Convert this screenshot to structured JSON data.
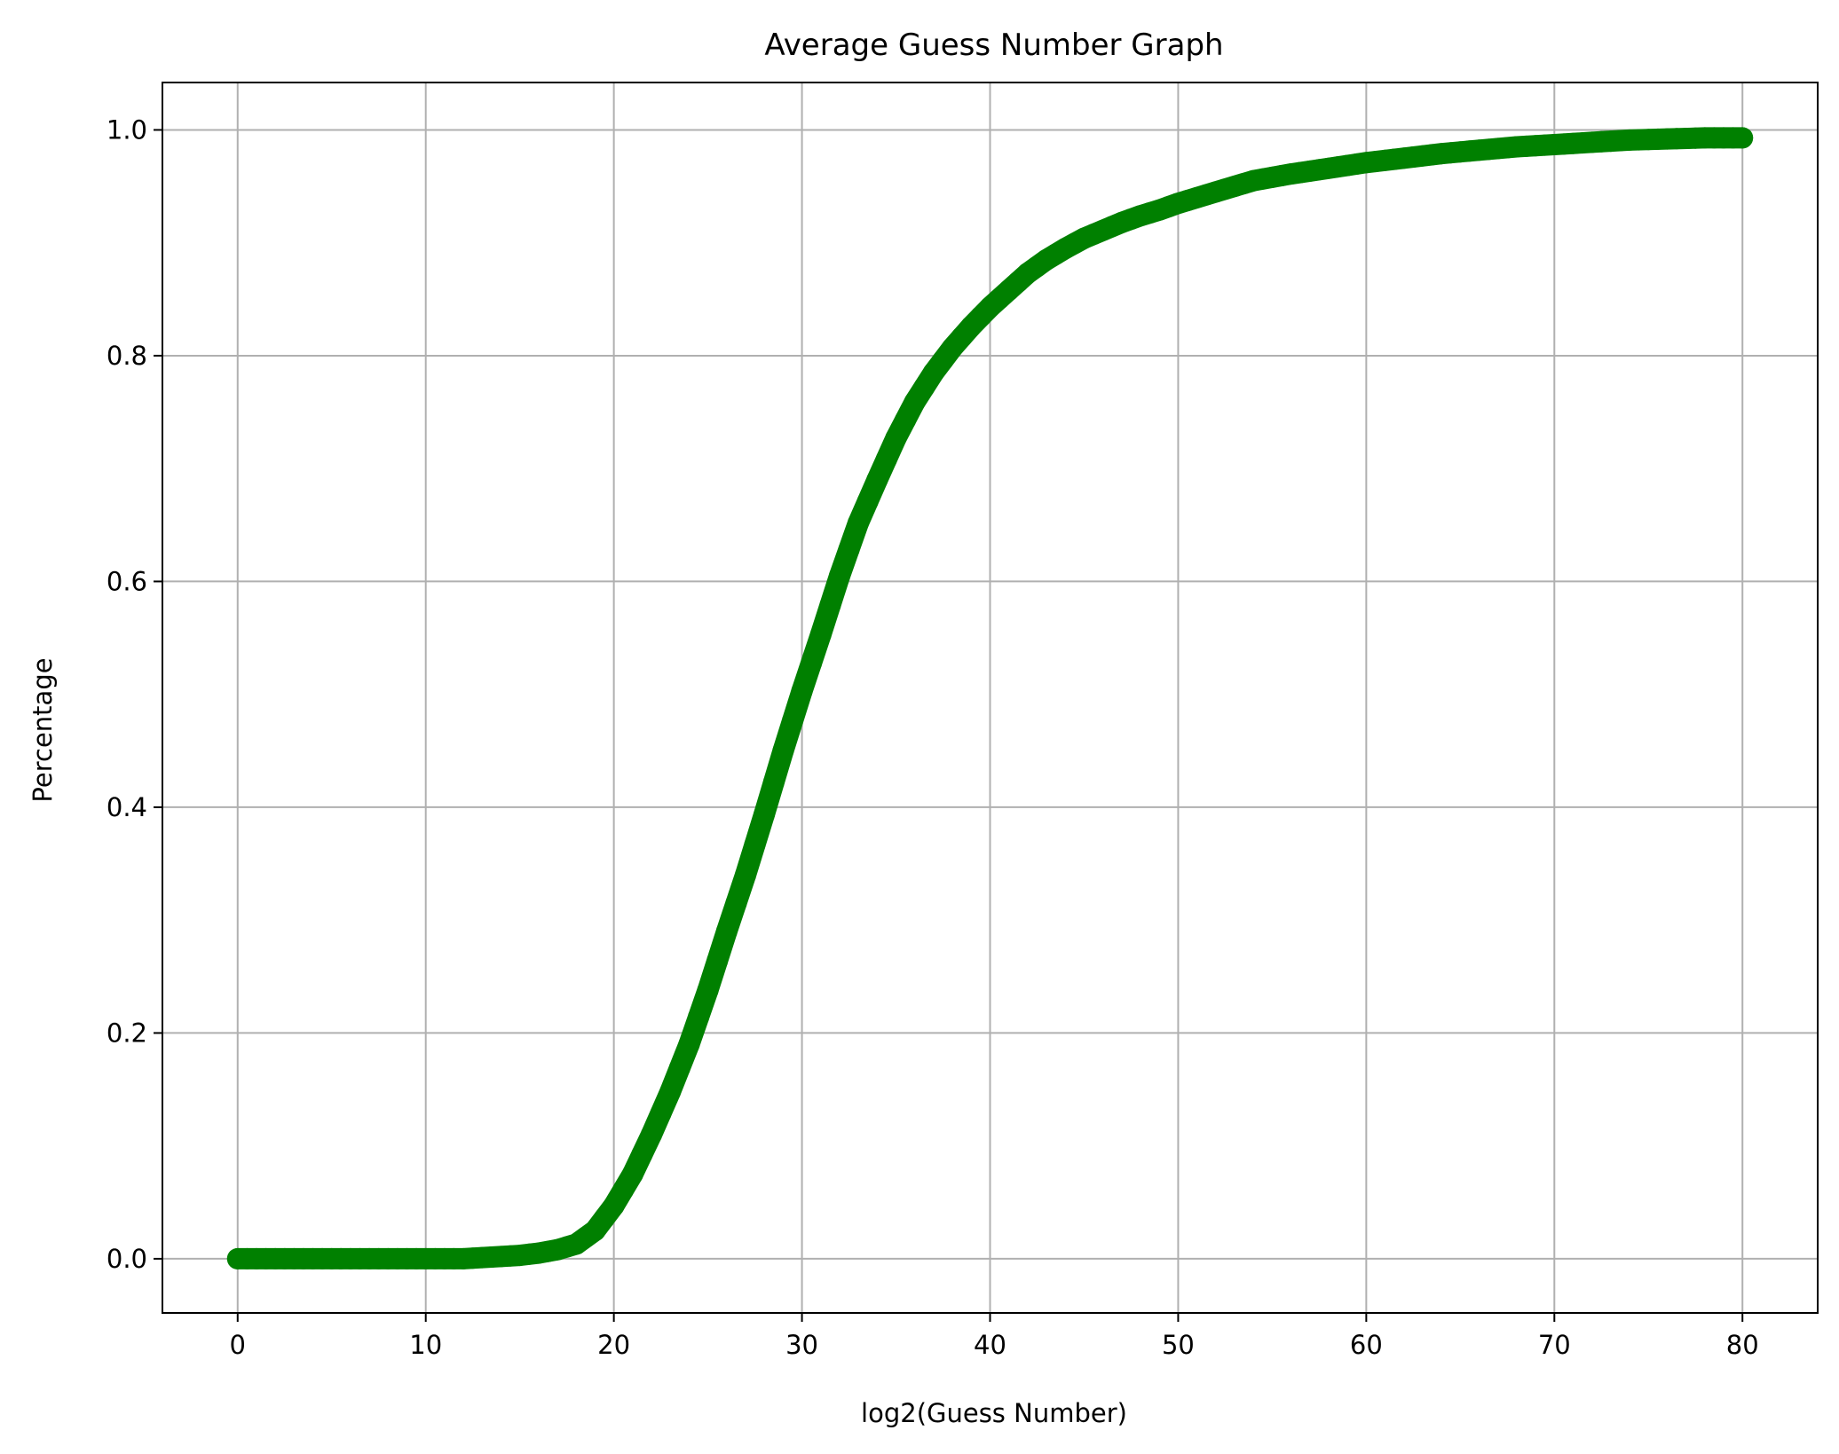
{
  "colors": {
    "line": "#008000",
    "grid": "#b0b0b0",
    "axis": "#000000",
    "background": "#ffffff"
  },
  "chart_data": {
    "type": "line",
    "title": "Average Guess Number Graph",
    "xlabel": "log2(Guess Number)",
    "ylabel": "Percentage",
    "xlim": [
      -4,
      84
    ],
    "ylim": [
      -0.048,
      1.042
    ],
    "xticks": [
      0,
      10,
      20,
      30,
      40,
      50,
      60,
      70,
      80
    ],
    "yticks": [
      0.0,
      0.2,
      0.4,
      0.6,
      0.8,
      1.0
    ],
    "xtick_labels": [
      "0",
      "10",
      "20",
      "30",
      "40",
      "50",
      "60",
      "70",
      "80"
    ],
    "ytick_labels": [
      "0.0",
      "0.2",
      "0.4",
      "0.6",
      "0.8",
      "1.0"
    ],
    "grid": true,
    "legend": false,
    "marker": "o",
    "series": [
      {
        "x": [
          0,
          2,
          4,
          6,
          8,
          10,
          12,
          13,
          14,
          15,
          16,
          17,
          18,
          19,
          20,
          21,
          22,
          23,
          24,
          25,
          26,
          27,
          28,
          29,
          30,
          31,
          32,
          33,
          34,
          35,
          36,
          37,
          38,
          39,
          40,
          41,
          42,
          43,
          44,
          45,
          46,
          47,
          48,
          49,
          50,
          52,
          54,
          56,
          58,
          60,
          62,
          64,
          66,
          68,
          70,
          72,
          74,
          76,
          78,
          80
        ],
        "y": [
          0.0,
          0.0,
          0.0,
          0.0,
          0.0,
          0.0,
          0.0,
          0.001,
          0.002,
          0.003,
          0.005,
          0.008,
          0.013,
          0.025,
          0.047,
          0.075,
          0.11,
          0.148,
          0.19,
          0.238,
          0.29,
          0.34,
          0.394,
          0.45,
          0.503,
          0.553,
          0.605,
          0.652,
          0.69,
          0.727,
          0.759,
          0.785,
          0.807,
          0.826,
          0.843,
          0.858,
          0.873,
          0.885,
          0.895,
          0.904,
          0.911,
          0.918,
          0.924,
          0.929,
          0.935,
          0.945,
          0.955,
          0.961,
          0.966,
          0.971,
          0.975,
          0.979,
          0.982,
          0.985,
          0.987,
          0.989,
          0.991,
          0.992,
          0.993,
          0.993
        ]
      }
    ]
  }
}
